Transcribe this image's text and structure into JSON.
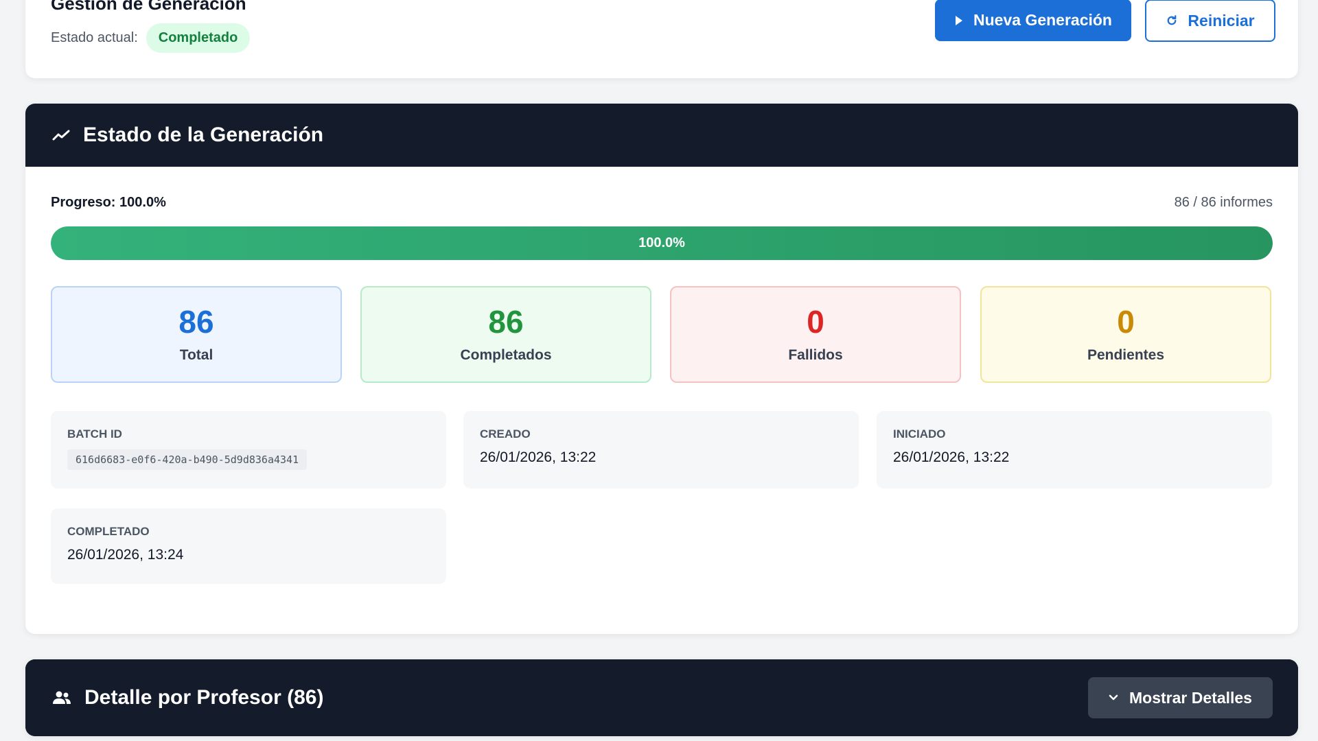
{
  "header": {
    "title": "Gestión de Generación",
    "state_label": "Estado actual:",
    "state_value": "Completado",
    "new_button_label": "Nueva Generación",
    "reset_button_label": "Reiniciar",
    "icons": {
      "new": "play-icon",
      "reset": "refresh-icon"
    }
  },
  "generation": {
    "title": "Estado de la Generación",
    "icon": "trending-up-icon",
    "progress_label": "Progreso: 100.0%",
    "progress_count": "86 / 86 informes",
    "progress_percent": 100.0,
    "progress_text": "100.0%",
    "stats": {
      "total": {
        "value": "86",
        "label": "Total"
      },
      "completed": {
        "value": "86",
        "label": "Completados"
      },
      "failed": {
        "value": "0",
        "label": "Fallidos"
      },
      "pending": {
        "value": "0",
        "label": "Pendientes"
      }
    },
    "info": {
      "batch_id": {
        "label": "Batch ID",
        "value": "616d6683-e0f6-420a-b490-5d9d836a4341"
      },
      "created": {
        "label": "Creado",
        "value": "26/01/2026, 13:22"
      },
      "started": {
        "label": "Iniciado",
        "value": "26/01/2026, 13:22"
      },
      "completed": {
        "label": "Completado",
        "value": "26/01/2026, 13:24"
      }
    }
  },
  "detail": {
    "title": "Detalle por Profesor (86)",
    "icon": "people-icon",
    "toggle_label": "Mostrar Detalles",
    "toggle_icon": "chevron-down-icon"
  },
  "colors": {
    "primary": "#1d6fd8",
    "success": "#22943e",
    "danger": "#dc2626",
    "warning": "#c98a06",
    "dark_header": "#141c2b"
  }
}
